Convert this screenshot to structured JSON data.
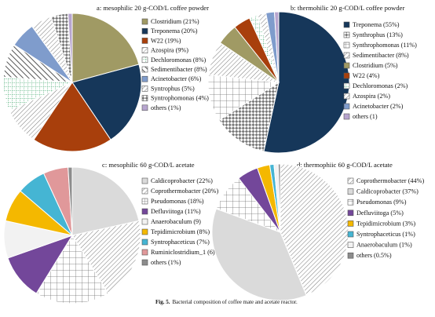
{
  "caption": {
    "label": "Fig. 5.",
    "text": "Bacterial composition of coffee mate and acetate reactor."
  },
  "chart_data": [
    {
      "type": "pie",
      "title": "a: mesophilic 20 g-COD/L coffee powder",
      "slices": [
        {
          "label": "Clostridium (21%)",
          "value": 21,
          "fill": "#a09a64",
          "pattern": "solid"
        },
        {
          "label": "Treponema (20%)",
          "value": 20,
          "fill": "#16375a",
          "pattern": "solid"
        },
        {
          "label": "W22 (19%)",
          "value": 19,
          "fill": "#a83f0c",
          "pattern": "solid"
        },
        {
          "label": "Azospira (9%)",
          "value": 9,
          "fill": "#ffffff",
          "pattern": "diag-fine"
        },
        {
          "label": "Dechloromonas (8%)",
          "value": 8,
          "fill": "#ffffff",
          "pattern": "green-grid"
        },
        {
          "label": "Sedimentibacter (8%)",
          "value": 8,
          "fill": "#ffffff",
          "pattern": "diag-bold"
        },
        {
          "label": "Acinetobacter (6%)",
          "value": 6,
          "fill": "#7f9ccc",
          "pattern": "solid"
        },
        {
          "label": "Syntrophus (5%)",
          "value": 5,
          "fill": "#ffffff",
          "pattern": "diag-fine"
        },
        {
          "label": "Syntrophomonas (4%)",
          "value": 4,
          "fill": "#ffffff",
          "pattern": "checker"
        },
        {
          "label": "others (1%)",
          "value": 1,
          "fill": "#b7a5cf",
          "pattern": "solid"
        }
      ]
    },
    {
      "type": "pie",
      "title": "b: thermohilic 20 g-COD/L coffee powder",
      "slices": [
        {
          "label": "Treponema (55%)",
          "value": 55,
          "fill": "#16375a",
          "pattern": "solid"
        },
        {
          "label": "Synthrophus (13%)",
          "value": 13,
          "fill": "#ffffff",
          "pattern": "checker"
        },
        {
          "label": "Synthrophomonas (11%)",
          "value": 11,
          "fill": "#ffffff",
          "pattern": "grid"
        },
        {
          "label": "Sedimentibacter (8%)",
          "value": 8,
          "fill": "#ffffff",
          "pattern": "diag-fine"
        },
        {
          "label": "Clostridium (5%)",
          "value": 5,
          "fill": "#a09a64",
          "pattern": "solid"
        },
        {
          "label": "W22 (4%)",
          "value": 4,
          "fill": "#a83f0c",
          "pattern": "solid"
        },
        {
          "label": "Dechloromonas (2%)",
          "value": 2,
          "fill": "#ffffff",
          "pattern": "green-grid"
        },
        {
          "label": "Azospira (2%)",
          "value": 2,
          "fill": "#ffffff",
          "pattern": "diag-fine"
        },
        {
          "label": "Acinetobacter (2%)",
          "value": 2,
          "fill": "#7f9ccc",
          "pattern": "solid"
        },
        {
          "label": "others (1)",
          "value": 1,
          "fill": "#b7a5cf",
          "pattern": "solid"
        }
      ]
    },
    {
      "type": "pie",
      "title": "c: mesophilic 60 g-COD/L acetate",
      "slices": [
        {
          "label": "Caldicoprobacter (22%)",
          "value": 22,
          "fill": "#dadada",
          "pattern": "solid"
        },
        {
          "label": "Coprothermobacter (20%)",
          "value": 20,
          "fill": "#ffffff",
          "pattern": "diag-fine"
        },
        {
          "label": "Pseudomonas (18%)",
          "value": 18,
          "fill": "#ffffff",
          "pattern": "grid"
        },
        {
          "label": "Defluviitoga (11%)",
          "value": 11,
          "fill": "#73479a",
          "pattern": "solid"
        },
        {
          "label": "Anaerobaculum (9)",
          "value": 9,
          "fill": "#f2f2f2",
          "pattern": "solid"
        },
        {
          "label": "Tepidimicrobium (8%)",
          "value": 8,
          "fill": "#f4b800",
          "pattern": "solid"
        },
        {
          "label": "Syntrophaceticus (7%)",
          "value": 7,
          "fill": "#45b5d3",
          "pattern": "solid"
        },
        {
          "label": "Ruminiclostridium_1 (6)",
          "value": 6,
          "fill": "#e0989a",
          "pattern": "solid"
        },
        {
          "label": "others (1%)",
          "value": 1,
          "fill": "#8c8c8c",
          "pattern": "solid"
        }
      ]
    },
    {
      "type": "pie",
      "title": "d: thermophiic 60 g-COD/L acetate",
      "slices": [
        {
          "label": "Coprothermobacter (44%)",
          "value": 44,
          "fill": "#ffffff",
          "pattern": "diag-fine"
        },
        {
          "label": "Caldicoprobacter (37%)",
          "value": 37,
          "fill": "#dadada",
          "pattern": "solid"
        },
        {
          "label": "Pseudomonas (9%)",
          "value": 9,
          "fill": "#ffffff",
          "pattern": "grid"
        },
        {
          "label": "Defluviitoga (5%)",
          "value": 5,
          "fill": "#73479a",
          "pattern": "solid"
        },
        {
          "label": "Tepidimicrobium (3%)",
          "value": 3,
          "fill": "#f4b800",
          "pattern": "solid"
        },
        {
          "label": "Syntrophaceticus (1%)",
          "value": 1,
          "fill": "#45b5d3",
          "pattern": "solid"
        },
        {
          "label": "Anaerobaculum (1%)",
          "value": 1,
          "fill": "#f2f2f2",
          "pattern": "solid"
        },
        {
          "label": "others (0.5%)",
          "value": 0.5,
          "fill": "#8c8c8c",
          "pattern": "solid"
        }
      ]
    }
  ]
}
